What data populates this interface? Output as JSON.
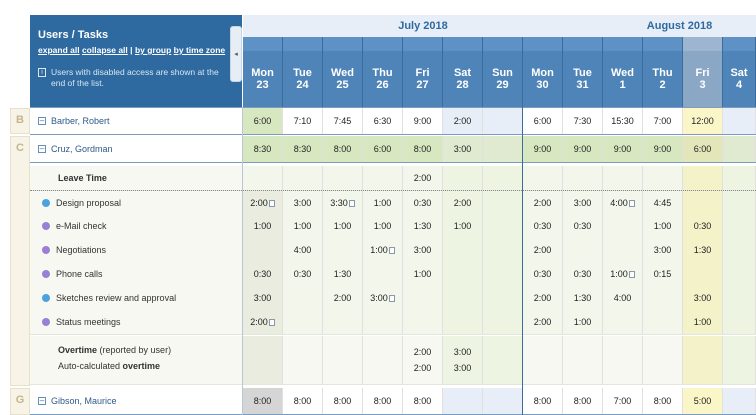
{
  "left_header": {
    "title": "Users / Tasks",
    "link_expand": "expand all",
    "link_collapse": "collapse all",
    "link_group": "by group",
    "link_tz": "by time zone",
    "sep": "|",
    "note": "Users with disabled access are shown at the end of the list."
  },
  "months": [
    {
      "label": "July 2018"
    },
    {
      "label": "August 2018"
    }
  ],
  "days": [
    {
      "dow": "Mon",
      "num": "23"
    },
    {
      "dow": "Tue",
      "num": "24"
    },
    {
      "dow": "Wed",
      "num": "25"
    },
    {
      "dow": "Thu",
      "num": "26"
    },
    {
      "dow": "Fri",
      "num": "27"
    },
    {
      "dow": "Sat",
      "num": "28"
    },
    {
      "dow": "Sun",
      "num": "29"
    },
    {
      "dow": "Mon",
      "num": "30"
    },
    {
      "dow": "Tue",
      "num": "31"
    },
    {
      "dow": "Wed",
      "num": "1"
    },
    {
      "dow": "Thu",
      "num": "2"
    },
    {
      "dow": "Fri",
      "num": "3"
    },
    {
      "dow": "Sat",
      "num": "4"
    }
  ],
  "groups": [
    "B",
    "C",
    "G"
  ],
  "users": {
    "barber": {
      "name": "Barber, Robert",
      "values": [
        "6:00",
        "7:10",
        "7:45",
        "6:30",
        "9:00",
        "2:00",
        "",
        "6:00",
        "7:30",
        "15:30",
        "7:00",
        "12:00",
        ""
      ]
    },
    "cruz": {
      "name": "Cruz, Gordman",
      "values": [
        "8:30",
        "8:30",
        "8:00",
        "6:00",
        "8:00",
        "3:00",
        "",
        "9:00",
        "9:00",
        "9:00",
        "9:00",
        "6:00",
        ""
      ]
    },
    "gibson": {
      "name": "Gibson, Maurice",
      "values": [
        "8:00",
        "8:00",
        "8:00",
        "8:00",
        "8:00",
        "",
        "",
        "8:00",
        "8:00",
        "7:00",
        "8:00",
        "5:00",
        ""
      ]
    }
  },
  "leave": {
    "label": "Leave Time",
    "values": [
      "",
      "",
      "",
      "",
      "2:00",
      "",
      "",
      "",
      "",
      "",
      "",
      "",
      ""
    ]
  },
  "tasks": [
    {
      "name": "Design proposal",
      "icon_color": "#4aa3df",
      "values": [
        "2:00",
        "3:00",
        "3:30",
        "1:00",
        "0:30",
        "2:00",
        "",
        "2:00",
        "3:00",
        "4:00",
        "4:45",
        "",
        ""
      ],
      "docs": [
        0,
        2,
        9
      ]
    },
    {
      "name": "e-Mail check",
      "icon_color": "#9b7fd4",
      "values": [
        "1:00",
        "1:00",
        "1:00",
        "1:00",
        "1:30",
        "1:00",
        "",
        "0:30",
        "0:30",
        "",
        "1:00",
        "0:30",
        ""
      ],
      "docs": []
    },
    {
      "name": "Negotiations",
      "icon_color": "#9b7fd4",
      "values": [
        "",
        "4:00",
        "",
        "1:00",
        "3:00",
        "",
        "",
        "2:00",
        "",
        "",
        "3:00",
        "1:30",
        ""
      ],
      "docs": [
        3
      ]
    },
    {
      "name": "Phone calls",
      "icon_color": "#9b7fd4",
      "values": [
        "0:30",
        "0:30",
        "1:30",
        "",
        "1:00",
        "",
        "",
        "0:30",
        "0:30",
        "1:00",
        "0:15",
        "",
        ""
      ],
      "docs": [
        9
      ]
    },
    {
      "name": "Sketches review and approval",
      "icon_color": "#4aa3df",
      "values": [
        "3:00",
        "",
        "2:00",
        "3:00",
        "",
        "",
        "",
        "2:00",
        "1:30",
        "4:00",
        "",
        "3:00",
        ""
      ],
      "docs": [
        3
      ]
    },
    {
      "name": "Status meetings",
      "icon_color": "#9b7fd4",
      "values": [
        "2:00",
        "",
        "",
        "",
        "",
        "",
        "",
        "2:00",
        "1:00",
        "",
        "",
        "1:00",
        ""
      ],
      "docs": [
        0
      ]
    }
  ],
  "overtime": {
    "label1_bold": "Overtime",
    "label1_rest": " (reported by user)",
    "label2_pre": "Auto-calculated ",
    "label2_bold": "overtime",
    "values1": [
      "",
      "",
      "",
      "",
      "2:00",
      "3:00",
      "",
      "",
      "",
      "",
      "",
      "",
      ""
    ],
    "values2": [
      "",
      "",
      "",
      "",
      "2:00",
      "3:00",
      "",
      "",
      "",
      "",
      "",
      "",
      ""
    ]
  },
  "colors": {
    "header_blue": "#2e6aa0",
    "weekend_green": "#eef4e2",
    "today_yellow": "#f4f2c8",
    "user_green": "#d7e8c1"
  }
}
